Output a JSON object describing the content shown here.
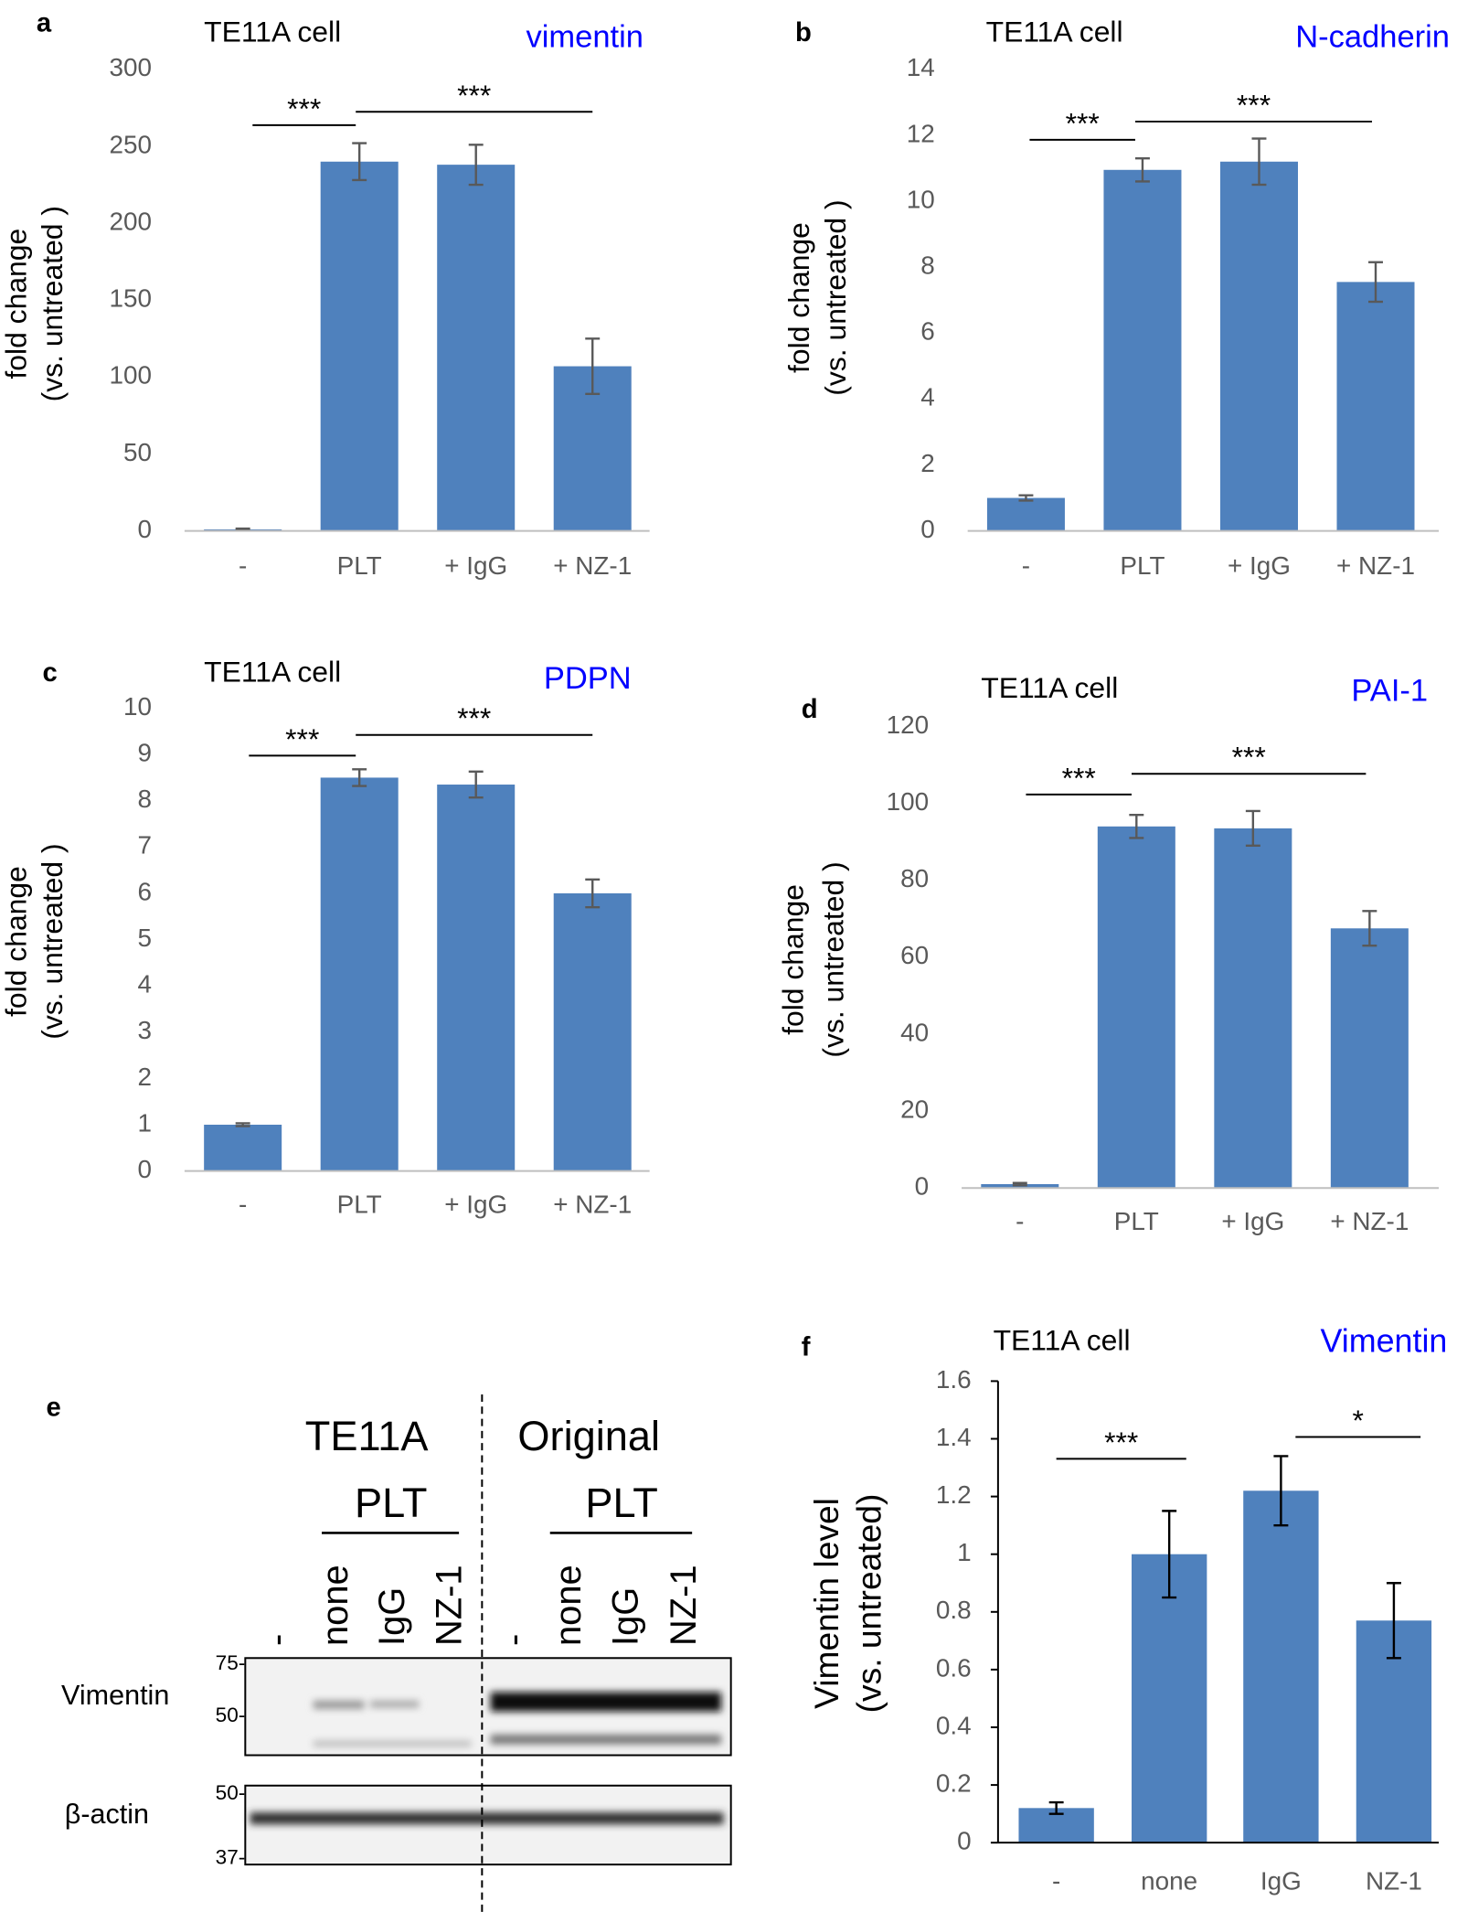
{
  "chart_data": [
    {
      "type": "bar",
      "panel": "a",
      "title": "TE11A cell",
      "label": "vimentin",
      "label_color": "#0000ff",
      "ylabel": [
        "fold change",
        "(vs. untreated )"
      ],
      "categories": [
        "-",
        "PLT",
        "+ IgG",
        "+ NZ-1"
      ],
      "values": [
        1,
        240,
        238,
        107
      ],
      "errors": [
        0.5,
        12,
        13,
        18
      ],
      "color": "#4f81bd",
      "error_color": "#595959",
      "ylim": [
        0,
        300
      ],
      "yticks": [
        0,
        50,
        100,
        150,
        200,
        250,
        300
      ],
      "significance": [
        {
          "text": "***",
          "span": [
            0,
            1
          ]
        },
        {
          "text": "***",
          "span": [
            1,
            3
          ]
        }
      ]
    },
    {
      "type": "bar",
      "panel": "b",
      "title": "TE11A cell",
      "label": "N-cadherin",
      "label_color": "#0000ff",
      "ylabel": [
        "fold change",
        "(vs. untreated )"
      ],
      "categories": [
        "-",
        "PLT",
        "+ IgG",
        "+ NZ-1"
      ],
      "values": [
        1,
        10.95,
        11.2,
        7.55
      ],
      "errors": [
        0.08,
        0.35,
        0.7,
        0.6
      ],
      "color": "#4f81bd",
      "error_color": "#595959",
      "ylim": [
        0,
        14
      ],
      "yticks": [
        0,
        2,
        4,
        6,
        8,
        10,
        12,
        14
      ],
      "significance": [
        {
          "text": "***",
          "span": [
            0,
            1
          ]
        },
        {
          "text": "***",
          "span": [
            1,
            3
          ]
        }
      ]
    },
    {
      "type": "bar",
      "panel": "c",
      "title": "TE11A cell",
      "label": "PDPN",
      "label_color": "#0000ff",
      "ylabel": [
        "fold change",
        "(vs. untreated )"
      ],
      "categories": [
        "-",
        "PLT",
        "+ IgG",
        "+ NZ-1"
      ],
      "values": [
        1,
        8.5,
        8.35,
        6.0
      ],
      "errors": [
        0.03,
        0.18,
        0.28,
        0.3
      ],
      "color": "#4f81bd",
      "error_color": "#595959",
      "ylim": [
        0,
        10
      ],
      "yticks": [
        0,
        1,
        2,
        3,
        4,
        5,
        6,
        7,
        8,
        9,
        10
      ],
      "significance": [
        {
          "text": "***",
          "span": [
            0,
            1
          ]
        },
        {
          "text": "***",
          "span": [
            1,
            3
          ]
        }
      ]
    },
    {
      "type": "bar",
      "panel": "d",
      "title": "TE11A cell",
      "label": "PAI-1",
      "label_color": "#0000ff",
      "ylabel": [
        "fold change",
        "(vs. untreated )"
      ],
      "categories": [
        "-",
        "PLT",
        "+ IgG",
        "+ NZ-1"
      ],
      "values": [
        1,
        94,
        93.5,
        67.5
      ],
      "errors": [
        0.3,
        3,
        4.5,
        4.5
      ],
      "color": "#4f81bd",
      "error_color": "#595959",
      "ylim": [
        0,
        120
      ],
      "yticks": [
        0,
        20,
        40,
        60,
        80,
        100,
        120
      ],
      "significance": [
        {
          "text": "***",
          "span": [
            0,
            1
          ]
        },
        {
          "text": "***",
          "span": [
            1,
            3
          ]
        }
      ]
    },
    {
      "type": "bar",
      "panel": "f",
      "title": "TE11A cell",
      "label": "Vimentin",
      "label_color": "#0000ff",
      "ylabel": [
        "Vimentin level",
        "(vs. untreated)"
      ],
      "categories": [
        "-",
        "none",
        "IgG",
        "NZ-1"
      ],
      "values": [
        0.12,
        1.0,
        1.22,
        0.77
      ],
      "errors": [
        0.02,
        0.15,
        0.12,
        0.13
      ],
      "color": "#4f81bd",
      "error_color": "#000000",
      "ylim": [
        0,
        1.6
      ],
      "yticks": [
        0,
        0.2,
        0.4,
        0.6,
        0.8,
        1,
        1.2,
        1.4,
        1.6
      ],
      "significance": [
        {
          "text": "***",
          "span": [
            0,
            1
          ]
        },
        {
          "text": "*",
          "span": [
            2,
            3
          ]
        }
      ]
    }
  ],
  "blot": {
    "panel": "e",
    "groups": [
      {
        "title": "TE11A",
        "treatment": "PLT",
        "lanes": [
          "-",
          "none",
          "IgG",
          "NZ-1"
        ]
      },
      {
        "title": "Original",
        "treatment": "PLT",
        "lanes": [
          "-",
          "none",
          "IgG",
          "NZ-1"
        ]
      }
    ],
    "rows": [
      {
        "label": "Vimentin",
        "markers": [
          "75-",
          "50-"
        ]
      },
      {
        "label": "β-actin",
        "markers": [
          "50-",
          "37-"
        ]
      }
    ]
  }
}
